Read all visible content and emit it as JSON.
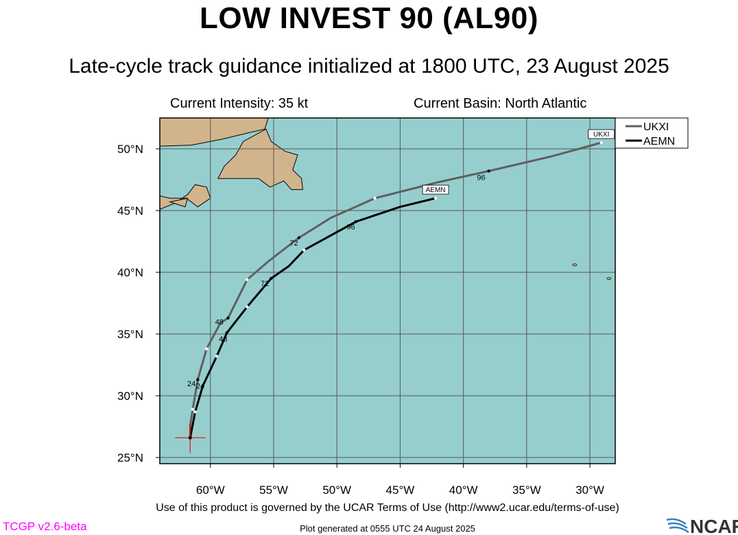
{
  "header": {
    "title": "LOW INVEST 90 (AL90)",
    "subtitle": "Late-cycle track guidance initialized at 1800 UTC, 23 August 2025",
    "intensity": "Current Intensity: 35 kt",
    "basin": "Current Basin: North Atlantic"
  },
  "footer": {
    "terms": "Use of this product is governed by the UCAR Terms of Use (http://www2.ucar.edu/terms-of-use)",
    "version": "TCGP v2.6-beta",
    "generated": "Plot generated at 0555 UTC   24 August 2025",
    "logo_text": "NCAR"
  },
  "colors": {
    "ocean": "#96cece",
    "land": "#d2b48c",
    "grid": "#555555",
    "ukxi": "#5f5f5f",
    "aemn": "#000000",
    "storm_marker": "#ff0000",
    "version_text": "#ff00ff"
  },
  "map": {
    "lon_range": [
      -64,
      -28
    ],
    "lat_range": [
      24.5,
      52.5
    ],
    "x_ticks": [
      {
        "lon": -60,
        "label": "60°W"
      },
      {
        "lon": -55,
        "label": "55°W"
      },
      {
        "lon": -50,
        "label": "50°W"
      },
      {
        "lon": -45,
        "label": "45°W"
      },
      {
        "lon": -40,
        "label": "40°W"
      },
      {
        "lon": -35,
        "label": "35°W"
      },
      {
        "lon": -30,
        "label": "30°W"
      }
    ],
    "y_ticks": [
      {
        "lat": 25,
        "label": "25°N"
      },
      {
        "lat": 30,
        "label": "30°N"
      },
      {
        "lat": 35,
        "label": "35°N"
      },
      {
        "lat": 40,
        "label": "40°N"
      },
      {
        "lat": 45,
        "label": "45°N"
      },
      {
        "lat": 50,
        "label": "50°N"
      }
    ],
    "current_position": {
      "lon": -61.6,
      "lat": 26.6
    }
  },
  "chart_data": {
    "type": "track",
    "legend": [
      "UKXI",
      "AEMN"
    ],
    "legend_position": "top-right",
    "series": [
      {
        "name": "UKXI",
        "color": "#5f5f5f",
        "track": [
          [
            -61.6,
            26.6
          ],
          [
            -61.6,
            27.6
          ],
          [
            -61.4,
            28.9
          ],
          [
            -61.0,
            31.3
          ],
          [
            -60.3,
            33.8
          ],
          [
            -59.2,
            35.9
          ],
          [
            -58.6,
            36.3
          ],
          [
            -57.1,
            39.4
          ],
          [
            -55.4,
            40.9
          ],
          [
            -53.0,
            42.8
          ],
          [
            -50.5,
            44.4
          ],
          [
            -47.0,
            46.0
          ],
          [
            -42.0,
            47.3
          ],
          [
            -38.0,
            48.2
          ],
          [
            -33.0,
            49.4
          ],
          [
            -29.1,
            50.5
          ]
        ],
        "fix_points": [
          [
            -61.4,
            28.9
          ],
          [
            -61.0,
            31.3
          ],
          [
            -60.3,
            33.8
          ],
          [
            -58.6,
            36.3
          ],
          [
            -57.1,
            39.4
          ],
          [
            -53.0,
            42.8
          ],
          [
            -47.0,
            46.0
          ],
          [
            -38.0,
            48.2
          ],
          [
            -29.1,
            50.5
          ]
        ],
        "hour_labels": [
          {
            "text": "24",
            "lon": -61.5,
            "lat": 31.0
          },
          {
            "text": "48",
            "lon": -59.3,
            "lat": 36.0
          },
          {
            "text": "72",
            "lon": -53.4,
            "lat": 42.4
          },
          {
            "text": "96",
            "lon": -38.6,
            "lat": 47.7
          }
        ],
        "end_label": "UKXI"
      },
      {
        "name": "AEMN",
        "color": "#000000",
        "track": [
          [
            -61.6,
            26.6
          ],
          [
            -61.2,
            28.7
          ],
          [
            -60.6,
            30.8
          ],
          [
            -59.5,
            33.2
          ],
          [
            -58.7,
            35.1
          ],
          [
            -57.1,
            37.2
          ],
          [
            -55.2,
            39.5
          ],
          [
            -53.8,
            40.5
          ],
          [
            -52.6,
            41.8
          ],
          [
            -48.5,
            44.1
          ],
          [
            -45.0,
            45.3
          ],
          [
            -42.2,
            46.0
          ]
        ],
        "fix_points": [
          [
            -61.2,
            28.7
          ],
          [
            -60.6,
            30.8
          ],
          [
            -59.5,
            33.2
          ],
          [
            -58.7,
            35.1
          ],
          [
            -57.1,
            37.2
          ],
          [
            -55.2,
            39.5
          ],
          [
            -52.6,
            41.8
          ],
          [
            -48.5,
            44.1
          ],
          [
            -42.2,
            46.0
          ]
        ],
        "hour_labels": [
          {
            "text": "24",
            "lon": -60.8,
            "lat": 30.8
          },
          {
            "text": "48",
            "lon": -59.0,
            "lat": 34.6
          },
          {
            "text": "72",
            "lon": -55.7,
            "lat": 39.1
          },
          {
            "text": "96",
            "lon": -48.9,
            "lat": 43.7
          }
        ],
        "end_label": "AEMN"
      }
    ]
  }
}
